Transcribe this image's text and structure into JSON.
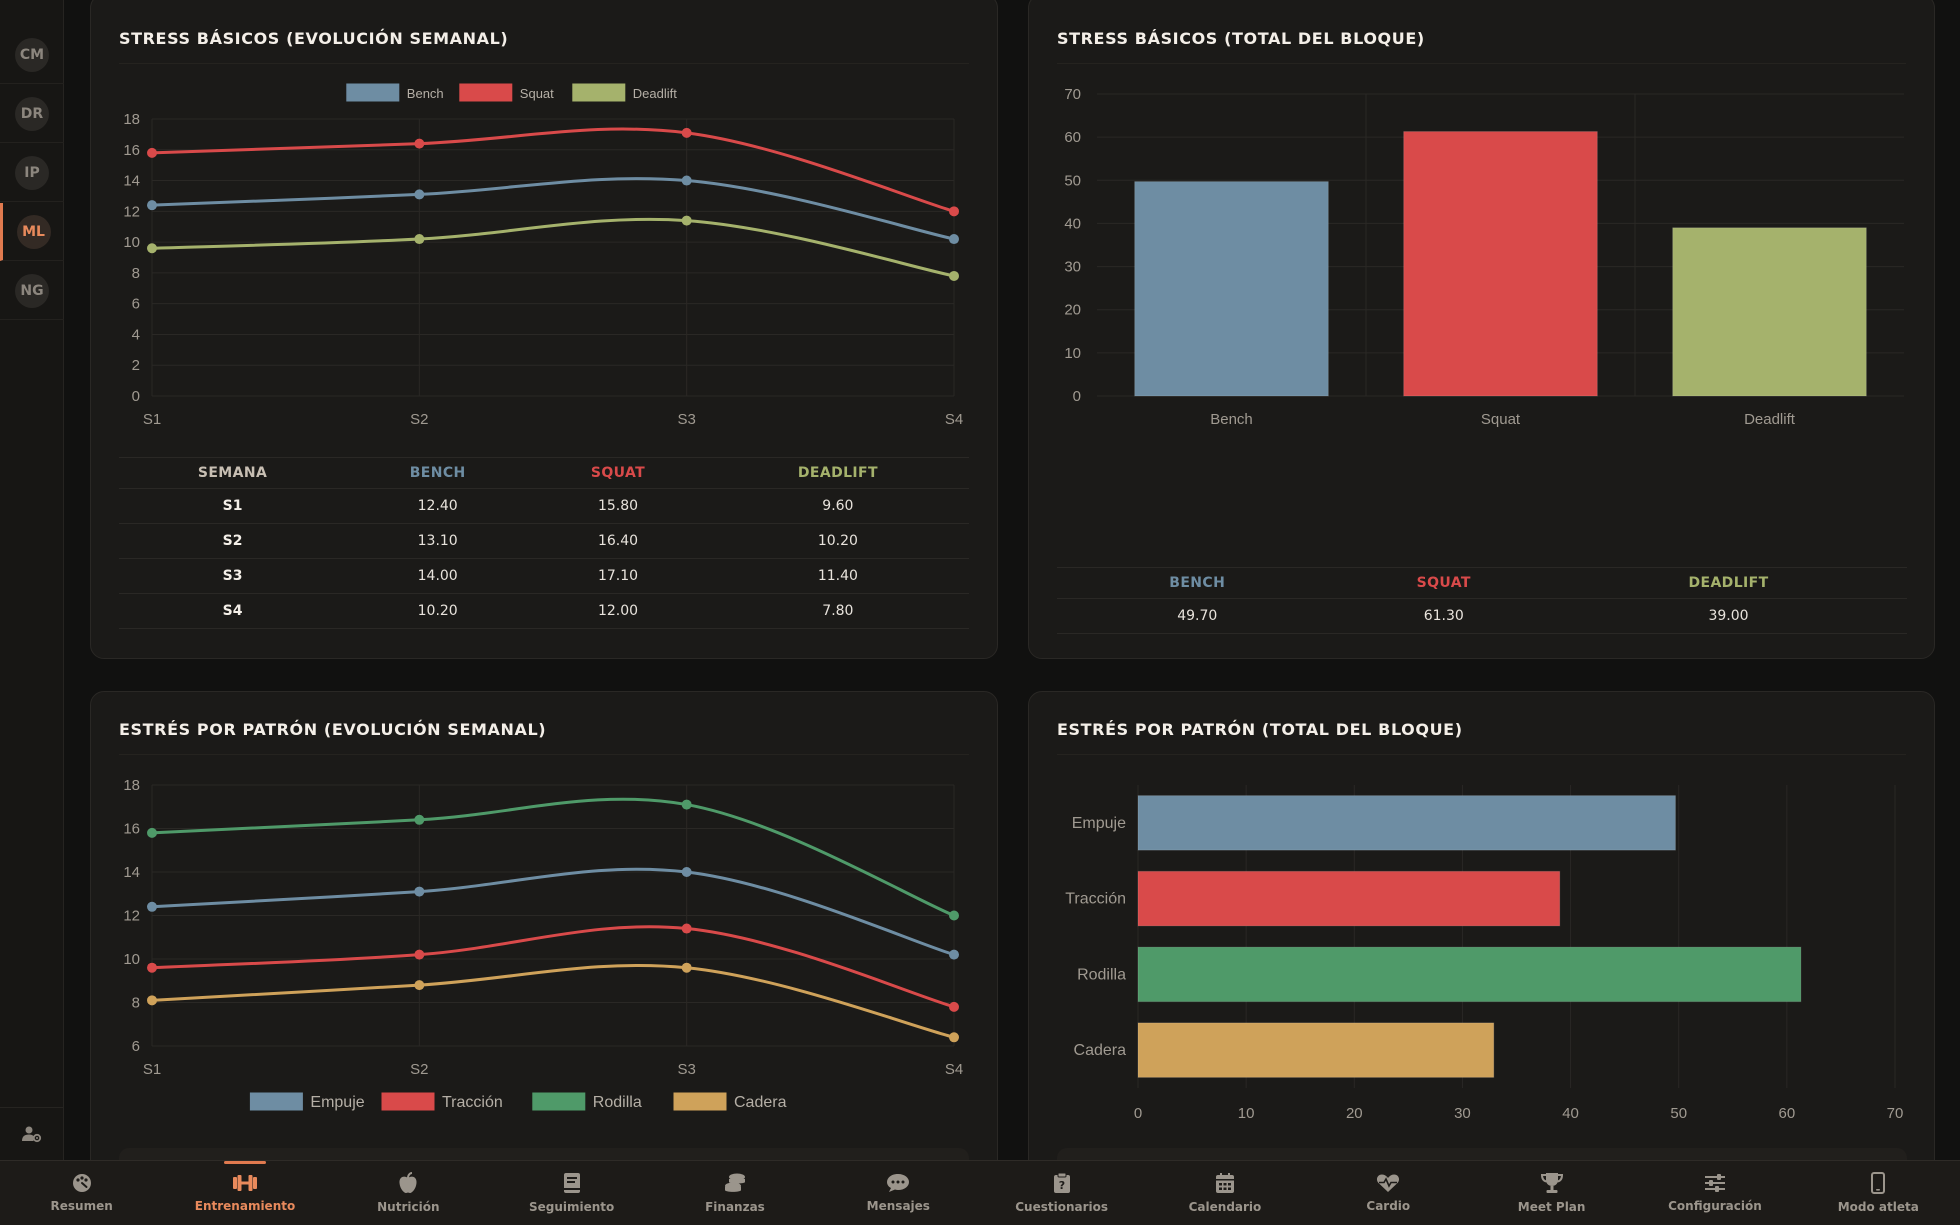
{
  "rail": {
    "items": [
      {
        "initials": "CM",
        "active": false
      },
      {
        "initials": "DR",
        "active": false
      },
      {
        "initials": "IP",
        "active": false
      },
      {
        "initials": "ML",
        "active": true
      },
      {
        "initials": "NG",
        "active": false
      }
    ],
    "bottom_icon": "user-settings-icon"
  },
  "colors": {
    "bench": "#6e8da3",
    "squat": "#d94a4a",
    "deadlift": "#a5b26c",
    "empuje": "#6e8da3",
    "traccion": "#d94a4a",
    "rodilla": "#4f9a69",
    "cadera": "#cfa25a",
    "accent": "#e07a4f"
  },
  "cards": {
    "stress_weekly": {
      "title": "STRESS BÁSICOS (EVOLUCIÓN SEMANAL)",
      "table": {
        "headers": [
          "SEMANA",
          "BENCH",
          "SQUAT",
          "DEADLIFT"
        ],
        "rows": [
          [
            "S1",
            "12.40",
            "15.80",
            "9.60"
          ],
          [
            "S2",
            "13.10",
            "16.40",
            "10.20"
          ],
          [
            "S3",
            "14.00",
            "17.10",
            "11.40"
          ],
          [
            "S4",
            "10.20",
            "12.00",
            "7.80"
          ]
        ]
      }
    },
    "stress_total": {
      "title": "STRESS BÁSICOS (TOTAL DEL BLOQUE)",
      "table": {
        "headers": [
          "BENCH",
          "SQUAT",
          "DEADLIFT"
        ],
        "values": [
          "49.70",
          "61.30",
          "39.00"
        ]
      }
    },
    "pattern_weekly": {
      "title": "ESTRÉS POR PATRÓN (EVOLUCIÓN SEMANAL)"
    },
    "pattern_total": {
      "title": "ESTRÉS POR PATRÓN (TOTAL DEL BLOQUE)"
    }
  },
  "chart_data": [
    {
      "type": "line",
      "x": [
        "S1",
        "S2",
        "S3",
        "S4"
      ],
      "series": [
        {
          "name": "Bench",
          "values": [
            12.4,
            13.1,
            14.0,
            10.2
          ]
        },
        {
          "name": "Squat",
          "values": [
            15.8,
            16.4,
            17.1,
            12.0
          ]
        },
        {
          "name": "Deadlift",
          "values": [
            9.6,
            10.2,
            11.4,
            7.8
          ]
        }
      ],
      "ylim": [
        0,
        18
      ],
      "yticks": [
        0,
        2,
        4,
        6,
        8,
        10,
        12,
        14,
        16,
        18
      ],
      "legend": "top",
      "grid": true
    },
    {
      "type": "bar",
      "categories": [
        "Bench",
        "Squat",
        "Deadlift"
      ],
      "values": [
        49.7,
        61.3,
        39.0
      ],
      "ylim": [
        0,
        70
      ],
      "yticks": [
        0,
        10,
        20,
        30,
        40,
        50,
        60,
        70
      ],
      "grid": true
    },
    {
      "type": "line",
      "x": [
        "S1",
        "S2",
        "S3",
        "S4"
      ],
      "series": [
        {
          "name": "Empuje",
          "values": [
            12.4,
            13.1,
            14.0,
            10.2
          ]
        },
        {
          "name": "Tracción",
          "values": [
            9.6,
            10.2,
            11.4,
            7.8
          ]
        },
        {
          "name": "Rodilla",
          "values": [
            15.8,
            16.4,
            17.1,
            12.0
          ]
        },
        {
          "name": "Cadera",
          "values": [
            8.1,
            8.8,
            9.6,
            6.4
          ]
        }
      ],
      "ylim": [
        6,
        18
      ],
      "yticks": [
        6,
        8,
        10,
        12,
        14,
        16,
        18
      ],
      "legend": "bottom",
      "grid": true
    },
    {
      "type": "bar",
      "orientation": "horizontal",
      "categories": [
        "Empuje",
        "Tracción",
        "Rodilla",
        "Cadera"
      ],
      "values": [
        49.7,
        39.0,
        61.3,
        32.9
      ],
      "xlim": [
        0,
        70
      ],
      "xticks": [
        0,
        10,
        20,
        30,
        40,
        50,
        60,
        70
      ],
      "grid": true
    }
  ],
  "bottom_nav": {
    "items": [
      {
        "label": "Resumen",
        "icon": "palette-icon",
        "active": false
      },
      {
        "label": "Entrenamiento",
        "icon": "dumbbell-icon",
        "active": true
      },
      {
        "label": "Nutrición",
        "icon": "apple-icon",
        "active": false
      },
      {
        "label": "Seguimiento",
        "icon": "book-icon",
        "active": false
      },
      {
        "label": "Finanzas",
        "icon": "coins-icon",
        "active": false
      },
      {
        "label": "Mensajes",
        "icon": "chat-icon",
        "active": false
      },
      {
        "label": "Cuestionarios",
        "icon": "clipboard-question-icon",
        "active": false
      },
      {
        "label": "Calendario",
        "icon": "calendar-icon",
        "active": false
      },
      {
        "label": "Cardio",
        "icon": "heart-pulse-icon",
        "active": false
      },
      {
        "label": "Meet Plan",
        "icon": "trophy-icon",
        "active": false
      },
      {
        "label": "Configuración",
        "icon": "sliders-icon",
        "active": false
      },
      {
        "label": "Modo atleta",
        "icon": "mobile-icon",
        "active": false
      }
    ]
  }
}
